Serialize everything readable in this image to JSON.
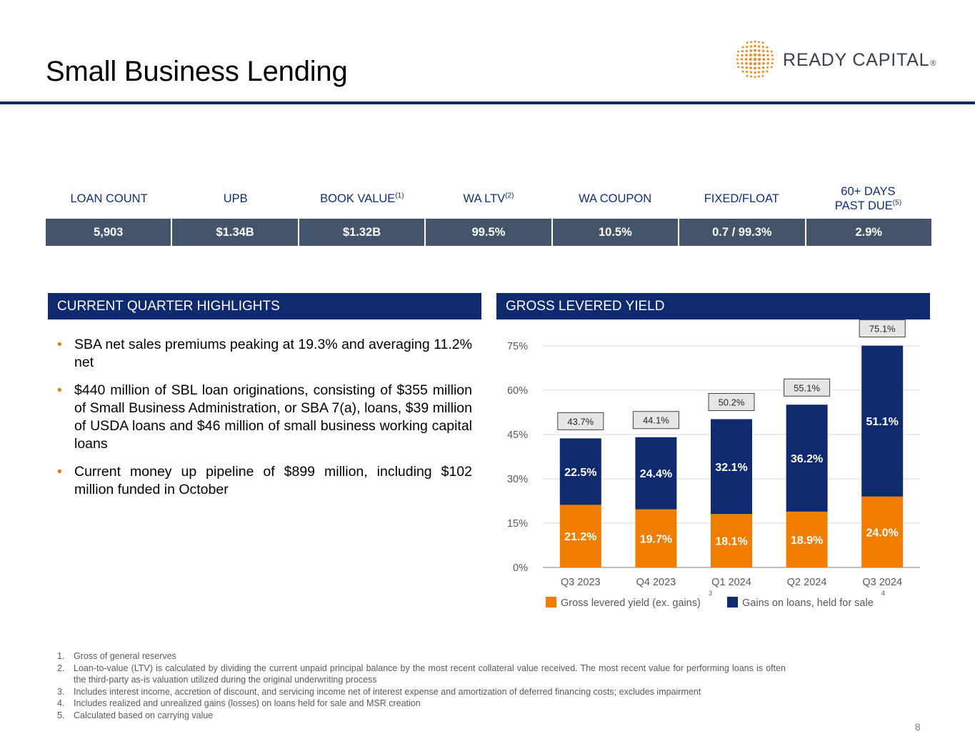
{
  "page": {
    "title": "Small Business Lending",
    "page_number": "8"
  },
  "logo": {
    "text": "READY CAPITAL",
    "reg_mark": "®",
    "colors": {
      "dots": "#f08a1c",
      "text": "#3a4250"
    }
  },
  "stats": {
    "headers": [
      {
        "label": "LOAN COUNT",
        "sup": ""
      },
      {
        "label": "UPB",
        "sup": ""
      },
      {
        "label": "BOOK VALUE",
        "sup": "(1)"
      },
      {
        "label": "WA LTV",
        "sup": "(2)"
      },
      {
        "label": "WA COUPON",
        "sup": ""
      },
      {
        "label": "FIXED/FLOAT",
        "sup": ""
      },
      {
        "label_line1": "60+ DAYS",
        "label": "PAST DUE",
        "sup": "(5)"
      }
    ],
    "values": [
      "5,903",
      "$1.34B",
      "$1.32B",
      "99.5%",
      "10.5%",
      "0.7 / 99.3%",
      "2.9%"
    ]
  },
  "highlights": {
    "heading": "CURRENT QUARTER HIGHLIGHTS",
    "bullets": [
      "SBA net sales premiums peaking at 19.3% and averaging 11.2% net",
      "$440 million of SBL loan originations, consisting of $355 million of Small Business Administration, or SBA 7(a), loans, $39 million of USDA loans and $46 million of small business working capital loans",
      "Current money up pipeline of $899 million, including $102 million funded in October"
    ]
  },
  "yield": {
    "heading": "GROSS LEVERED YIELD"
  },
  "chart_data": {
    "type": "bar",
    "stacked": true,
    "categories": [
      "Q3 2023",
      "Q4 2023",
      "Q1 2024",
      "Q2 2024",
      "Q3 2024"
    ],
    "series": [
      {
        "name": "Gross levered yield (ex. gains)",
        "name_sup": "3",
        "color": "#f07c00",
        "values": [
          21.2,
          19.7,
          18.1,
          18.9,
          24.0
        ],
        "labels": [
          "21.2%",
          "19.7%",
          "18.1%",
          "18.9%",
          "24.0%"
        ]
      },
      {
        "name": "Gains on loans, held for sale",
        "name_sup": "4",
        "color": "#0f2a6e",
        "values": [
          22.5,
          24.4,
          32.1,
          36.2,
          51.1
        ],
        "labels": [
          "22.5%",
          "24.4%",
          "32.1%",
          "36.2%",
          "51.1%"
        ]
      }
    ],
    "totals": [
      43.7,
      44.1,
      50.2,
      55.1,
      75.1
    ],
    "total_labels": [
      "43.7%",
      "44.1%",
      "50.2%",
      "55.1%",
      "75.1%"
    ],
    "y_ticks": [
      "0%",
      "15%",
      "30%",
      "45%",
      "60%",
      "75%"
    ],
    "y_tick_values": [
      0,
      15,
      30,
      45,
      60,
      75
    ],
    "ylim": [
      0,
      75
    ],
    "grid": true,
    "legend_position": "bottom"
  },
  "footnotes": [
    {
      "num": "1.",
      "text": "Gross of general reserves"
    },
    {
      "num": "2.",
      "text": "Loan-to-value (LTV) is calculated by dividing the current unpaid principal balance by the most recent collateral value received. The most recent value for performing loans is often the third-party as-is valuation utilized during the original underwriting process"
    },
    {
      "num": "3.",
      "text": "Includes interest income, accretion of discount, and servicing income net of interest expense and amortization of deferred financing costs; excludes impairment"
    },
    {
      "num": "4.",
      "text": "Includes realized and unrealized gains (losses) on loans held for sale and MSR creation"
    },
    {
      "num": "5.",
      "text": "Calculated based on carrying value"
    }
  ]
}
